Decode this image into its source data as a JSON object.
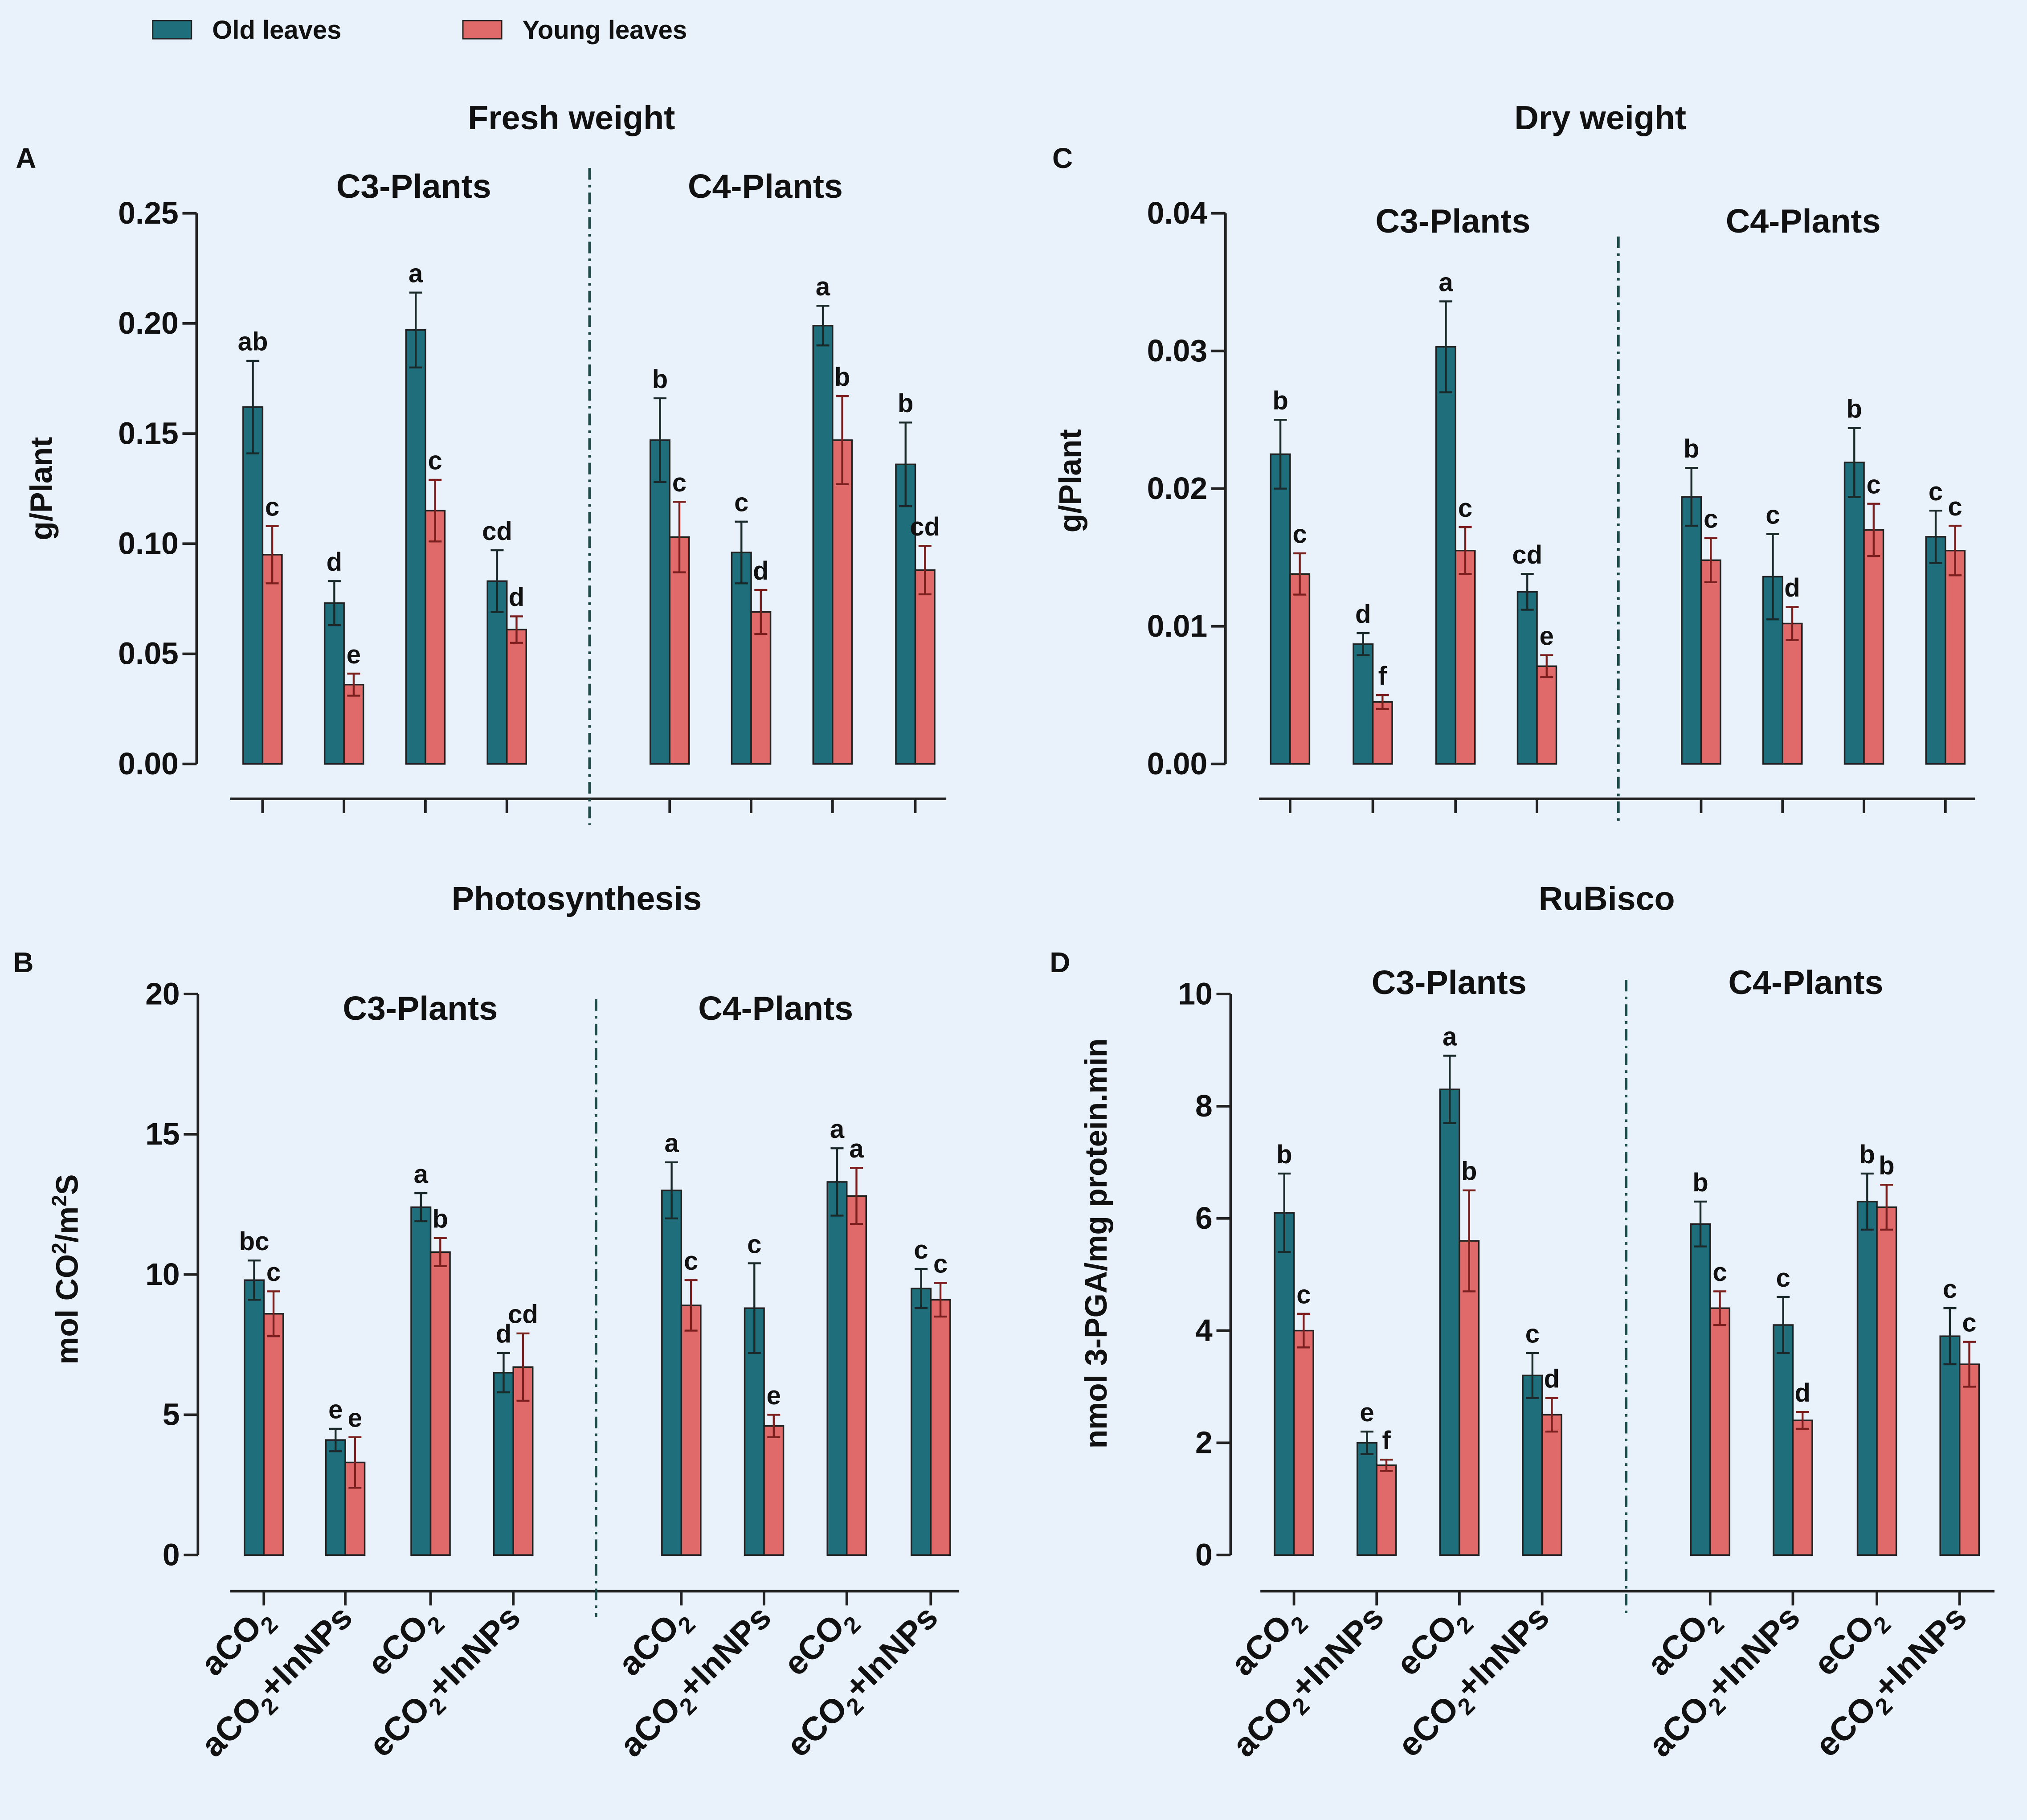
{
  "legend": [
    {
      "name": "Old leaves",
      "color": "#1e6e7c"
    },
    {
      "name": "Young leaves",
      "color": "#e06a6a"
    }
  ],
  "group_labels": [
    "C3-Plants",
    "C4-Plants"
  ],
  "x_categories": [
    "aCO2",
    "aCO2+InNPs",
    "eCO2",
    "eCO2+InNPs"
  ],
  "chart_data": [
    {
      "id": "A",
      "panel_letter": "A",
      "type": "bar",
      "title": "Fresh weight",
      "ylabel": "g/Plant",
      "ylim": [
        0,
        0.25
      ],
      "yticks": [
        "0.00",
        "0.05",
        "0.10",
        "0.15",
        "0.20",
        "0.25"
      ],
      "groups": [
        {
          "name": "C3-Plants",
          "old": {
            "values": [
              0.162,
              0.073,
              0.197,
              0.083
            ],
            "errors": [
              0.021,
              0.01,
              0.017,
              0.014
            ],
            "letters": [
              "ab",
              "d",
              "a",
              "cd"
            ]
          },
          "young": {
            "values": [
              0.095,
              0.036,
              0.115,
              0.061
            ],
            "errors": [
              0.013,
              0.005,
              0.014,
              0.006
            ],
            "letters": [
              "c",
              "e",
              "c",
              "d"
            ]
          }
        },
        {
          "name": "C4-Plants",
          "old": {
            "values": [
              0.147,
              0.096,
              0.199,
              0.136
            ],
            "errors": [
              0.019,
              0.014,
              0.009,
              0.019
            ],
            "letters": [
              "b",
              "c",
              "a",
              "b"
            ]
          },
          "young": {
            "values": [
              0.103,
              0.069,
              0.147,
              0.088
            ],
            "errors": [
              0.016,
              0.01,
              0.02,
              0.011
            ],
            "letters": [
              "c",
              "d",
              "b",
              "cd"
            ]
          }
        }
      ]
    },
    {
      "id": "C",
      "panel_letter": "C",
      "type": "bar",
      "title": "Dry weight",
      "ylabel": "g/Plant",
      "ylim": [
        0,
        0.04
      ],
      "yticks": [
        "0.00",
        "0.01",
        "0.02",
        "0.03",
        "0.04"
      ],
      "groups": [
        {
          "name": "C3-Plants",
          "old": {
            "values": [
              0.0225,
              0.0087,
              0.0303,
              0.0125
            ],
            "errors": [
              0.0025,
              0.0008,
              0.0033,
              0.0013
            ],
            "letters": [
              "b",
              "d",
              "a",
              "cd"
            ]
          },
          "young": {
            "values": [
              0.0138,
              0.0045,
              0.0155,
              0.0071
            ],
            "errors": [
              0.0015,
              0.0005,
              0.0017,
              0.0008
            ],
            "letters": [
              "c",
              "f",
              "c",
              "e"
            ]
          }
        },
        {
          "name": "C4-Plants",
          "old": {
            "values": [
              0.0194,
              0.0136,
              0.0219,
              0.0165
            ],
            "errors": [
              0.0021,
              0.0031,
              0.0025,
              0.0019
            ],
            "letters": [
              "b",
              "c",
              "b",
              "c"
            ]
          },
          "young": {
            "values": [
              0.0148,
              0.0102,
              0.017,
              0.0155
            ],
            "errors": [
              0.0016,
              0.0012,
              0.0019,
              0.0018
            ],
            "letters": [
              "c",
              "d",
              "c",
              "c"
            ]
          }
        }
      ]
    },
    {
      "id": "B",
      "panel_letter": "B",
      "type": "bar",
      "title": "Photosynthesis",
      "ylabel_parts": {
        "a": "mol CO",
        "b": "2",
        "c": "/m",
        "d": "2",
        "e": "S"
      },
      "ylim": [
        0,
        20
      ],
      "yticks": [
        "0",
        "5",
        "10",
        "15",
        "20"
      ],
      "groups": [
        {
          "name": "C3-Plants",
          "old": {
            "values": [
              9.8,
              4.1,
              12.4,
              6.5
            ],
            "errors": [
              0.7,
              0.4,
              0.5,
              0.7
            ],
            "letters": [
              "bc",
              "e",
              "a",
              "d"
            ]
          },
          "young": {
            "values": [
              8.6,
              3.3,
              10.8,
              6.7
            ],
            "errors": [
              0.8,
              0.9,
              0.5,
              1.2
            ],
            "letters": [
              "c",
              "e",
              "b",
              "cd"
            ]
          }
        },
        {
          "name": "C4-Plants",
          "old": {
            "values": [
              13.0,
              8.8,
              13.3,
              9.5
            ],
            "errors": [
              1.0,
              1.6,
              1.2,
              0.7
            ],
            "letters": [
              "a",
              "c",
              "a",
              "c"
            ]
          },
          "young": {
            "values": [
              8.9,
              4.6,
              12.8,
              9.1
            ],
            "errors": [
              0.9,
              0.4,
              1.0,
              0.6
            ],
            "letters": [
              "c",
              "e",
              "a",
              "c"
            ]
          }
        }
      ]
    },
    {
      "id": "D",
      "panel_letter": "D",
      "type": "bar",
      "title": "RuBisco",
      "ylabel": "nmol 3-PGA/mg protein.min",
      "ylim": [
        0,
        10
      ],
      "yticks": [
        "0",
        "2",
        "4",
        "6",
        "8",
        "10"
      ],
      "groups": [
        {
          "name": "C3-Plants",
          "old": {
            "values": [
              6.1,
              2.0,
              8.3,
              3.2
            ],
            "errors": [
              0.7,
              0.2,
              0.6,
              0.4
            ],
            "letters": [
              "b",
              "e",
              "a",
              "c"
            ]
          },
          "young": {
            "values": [
              4.0,
              1.6,
              5.6,
              2.5
            ],
            "errors": [
              0.3,
              0.1,
              0.9,
              0.3
            ],
            "letters": [
              "c",
              "f",
              "b",
              "d"
            ]
          }
        },
        {
          "name": "C4-Plants",
          "old": {
            "values": [
              5.9,
              4.1,
              6.3,
              3.9
            ],
            "errors": [
              0.4,
              0.5,
              0.5,
              0.5
            ],
            "letters": [
              "b",
              "c",
              "b",
              "c"
            ]
          },
          "young": {
            "values": [
              4.4,
              2.4,
              6.2,
              3.4
            ],
            "errors": [
              0.3,
              0.15,
              0.4,
              0.4
            ],
            "letters": [
              "c",
              "d",
              "b",
              "c"
            ]
          }
        }
      ]
    }
  ]
}
